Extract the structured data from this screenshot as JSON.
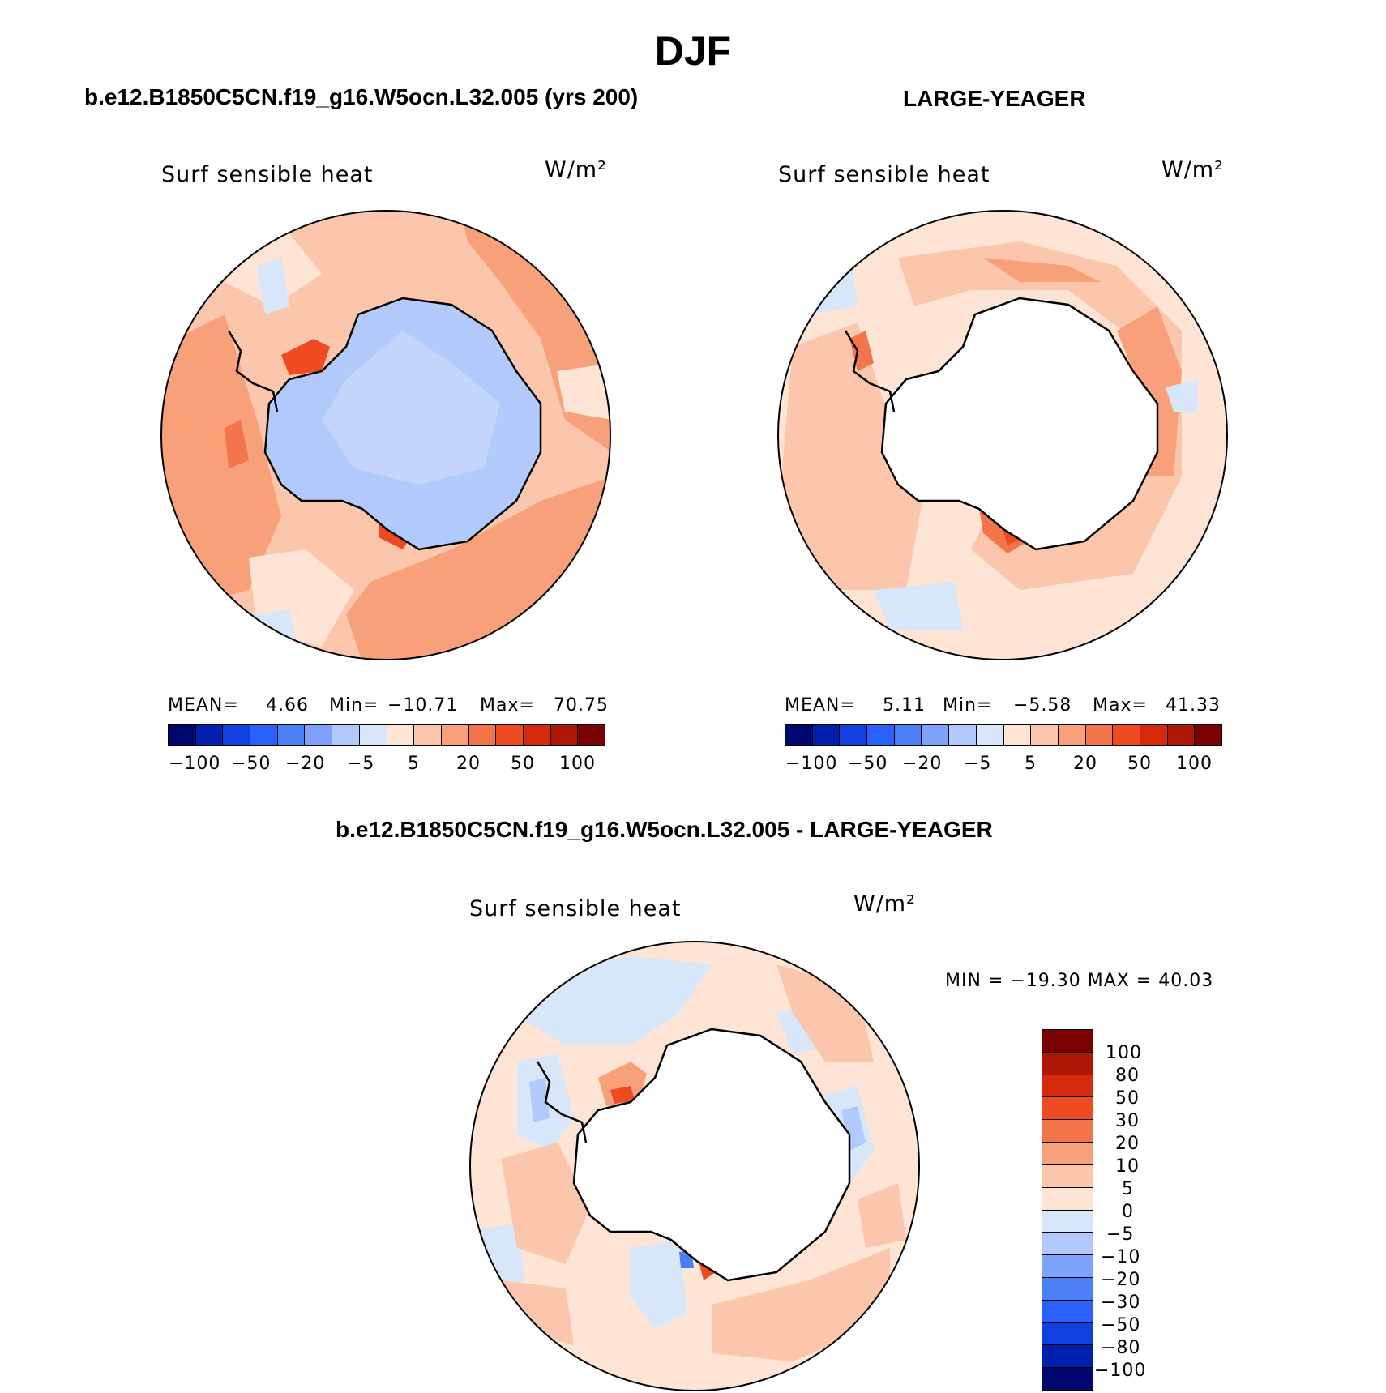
{
  "page": {
    "title": "DJF"
  },
  "panels": [
    {
      "case": "b.e12.B1850C5CN.f19_g16.W5ocn.L32.005 (yrs 200)",
      "variable": "Surf sensible heat",
      "units": "W/m²",
      "stats": {
        "mean_label": "MEAN=",
        "mean": "4.66",
        "min_label": "Min=",
        "min": "−10.71",
        "max_label": "Max=",
        "max": "70.75"
      },
      "colorbar_labels": [
        "−100",
        "−50",
        "−20",
        "−5",
        "5",
        "20",
        "50",
        "100"
      ]
    },
    {
      "case": "LARGE-YEAGER",
      "variable": "Surf sensible heat",
      "units": "W/m²",
      "stats": {
        "mean_label": "MEAN=",
        "mean": "5.11",
        "min_label": "Min=",
        "min": "−5.58",
        "max_label": "Max=",
        "max": "41.33"
      },
      "colorbar_labels": [
        "−100",
        "−50",
        "−20",
        "−5",
        "5",
        "20",
        "50",
        "100"
      ]
    }
  ],
  "diff": {
    "title": "b.e12.B1850C5CN.f19_g16.W5ocn.L32.005 - LARGE-YEAGER",
    "variable": "Surf sensible heat",
    "units": "W/m²",
    "minmax": "MIN = −19.30 MAX =   40.03",
    "colorbar_labels": [
      "100",
      "80",
      "50",
      "30",
      "20",
      "10",
      "5",
      "0",
      "−5",
      "−10",
      "−20",
      "−30",
      "−50",
      "−80",
      "−100"
    ]
  },
  "colors": {
    "abs_scale": [
      "#00076e",
      "#0020b0",
      "#1040df",
      "#2a62ff",
      "#4a7ff6",
      "#7da2fb",
      "#b2cafb",
      "#d8e6f9",
      "#fde4d4",
      "#fbc6ab",
      "#f7a07a",
      "#f4754c",
      "#ef4a20",
      "#d52b0c",
      "#ae1705",
      "#7a0202"
    ],
    "diff_scale": [
      "#7a0202",
      "#ae1705",
      "#d52b0c",
      "#ef4a20",
      "#f4754c",
      "#f7a07a",
      "#fbc6ab",
      "#fde4d4",
      "#d8e6f9",
      "#b2cafb",
      "#7da2fb",
      "#4a7ff6",
      "#2a62ff",
      "#1040df",
      "#0020b0",
      "#00076e"
    ]
  }
}
